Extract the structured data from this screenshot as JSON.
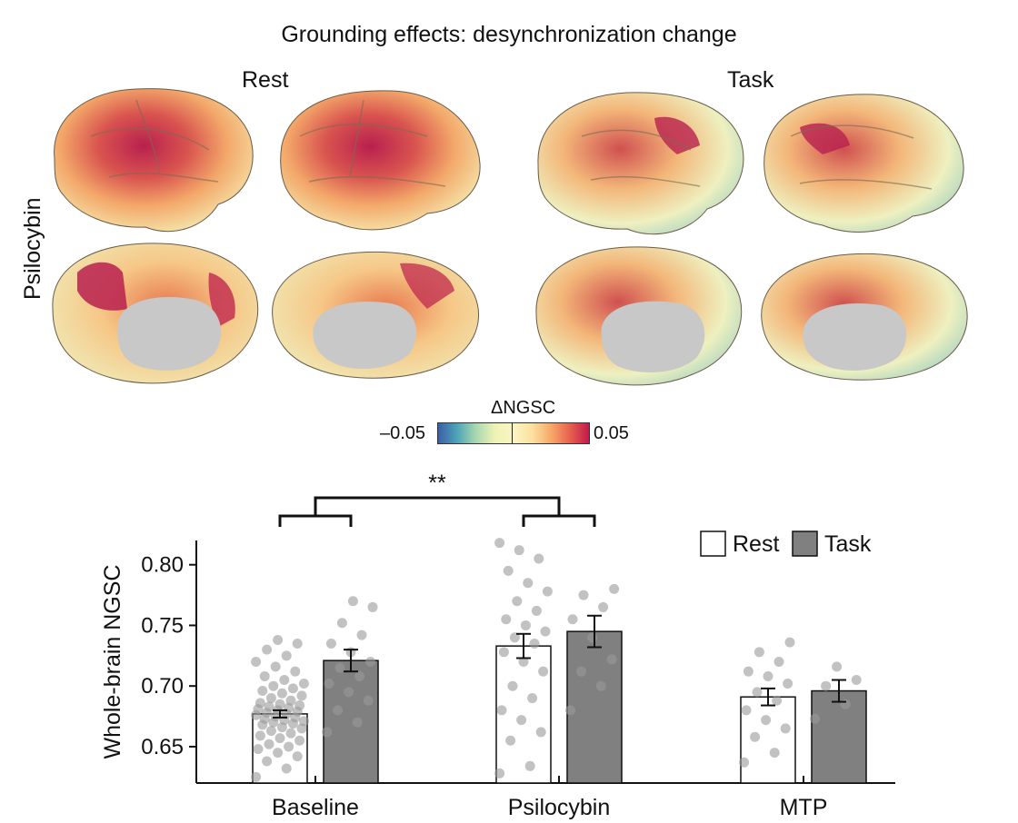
{
  "figure": {
    "title": "Grounding effects: desynchronization change",
    "columns": [
      "Rest",
      "Task"
    ],
    "row_label": "Psilocybin",
    "colorbar": {
      "title": "ΔNGSC",
      "min_label": "–0.05",
      "max_label": "0.05",
      "colors": [
        "#3b5fa8",
        "#a8d8b0",
        "#fbf6c4",
        "#f6a86a",
        "#c01a4c"
      ]
    },
    "colors": {
      "rest_fill": "#ffffff",
      "task_fill": "#808080",
      "dots": "#9a9a9a",
      "cortex_gray": "#c8c8c8"
    }
  },
  "chart_data": {
    "type": "bar",
    "categories": [
      "Baseline",
      "Psilocybin",
      "MTP"
    ],
    "ylabel": "Whole-brain NGSC",
    "ylim": [
      0.62,
      0.82
    ],
    "yticks": [
      "0.80",
      "0.75",
      "0.70",
      "0.65"
    ],
    "legend": {
      "placement": "top-right"
    },
    "series": [
      {
        "name": "Rest",
        "values": [
          0.677,
          0.733,
          0.691
        ],
        "errors": [
          0.003,
          0.01,
          0.007
        ],
        "points": [
          [
            0.625,
            0.632,
            0.638,
            0.642,
            0.645,
            0.648,
            0.65,
            0.652,
            0.655,
            0.657,
            0.659,
            0.661,
            0.663,
            0.665,
            0.666,
            0.668,
            0.669,
            0.67,
            0.671,
            0.672,
            0.673,
            0.674,
            0.675,
            0.676,
            0.677,
            0.678,
            0.679,
            0.68,
            0.681,
            0.682,
            0.683,
            0.684,
            0.685,
            0.686,
            0.688,
            0.69,
            0.692,
            0.694,
            0.696,
            0.698,
            0.7,
            0.702,
            0.705,
            0.708,
            0.712,
            0.716,
            0.72,
            0.725,
            0.73,
            0.735,
            0.738
          ],
          [
            0.628,
            0.634,
            0.655,
            0.662,
            0.672,
            0.68,
            0.69,
            0.7,
            0.712,
            0.72,
            0.728,
            0.735,
            0.74,
            0.745,
            0.75,
            0.755,
            0.762,
            0.77,
            0.778,
            0.785,
            0.795,
            0.805,
            0.812,
            0.818
          ],
          [
            0.637,
            0.645,
            0.658,
            0.665,
            0.672,
            0.68,
            0.688,
            0.695,
            0.702,
            0.708,
            0.712,
            0.72,
            0.728,
            0.736
          ]
        ]
      },
      {
        "name": "Task",
        "values": [
          0.721,
          0.745,
          0.696
        ],
        "errors": [
          0.009,
          0.013,
          0.009
        ],
        "points": [
          [
            0.662,
            0.67,
            0.68,
            0.688,
            0.695,
            0.702,
            0.708,
            0.715,
            0.72,
            0.728,
            0.735,
            0.742,
            0.752,
            0.765,
            0.77
          ],
          [
            0.68,
            0.7,
            0.712,
            0.722,
            0.74,
            0.755,
            0.765,
            0.775,
            0.78
          ],
          [
            0.673,
            0.685,
            0.7,
            0.705,
            0.716
          ]
        ]
      }
    ],
    "significance": {
      "label": "**",
      "between": [
        "Baseline",
        "Psilocybin"
      ]
    }
  }
}
